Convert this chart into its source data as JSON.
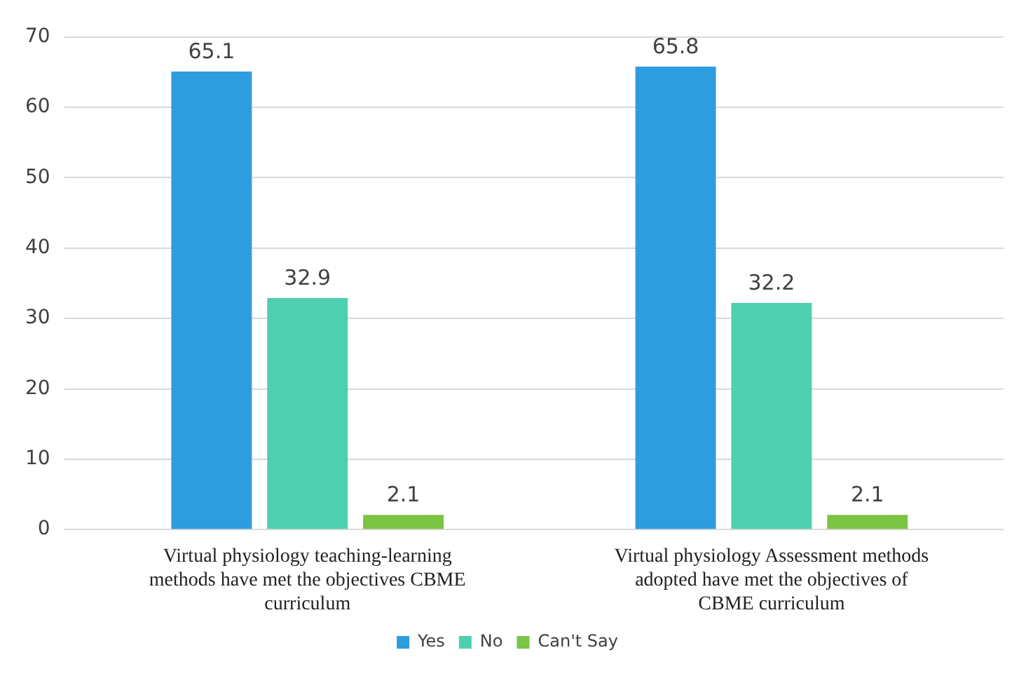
{
  "chart_data": {
    "type": "bar",
    "categories": [
      "Virtual physiology teaching-learning methods have met the objectives CBME curriculum",
      "Virtual physiology Assessment methods adopted have met the objectives of CBME curriculum"
    ],
    "series": [
      {
        "name": "Yes",
        "color": "#2e9de0",
        "values": [
          65.1,
          65.8
        ]
      },
      {
        "name": "No",
        "color": "#4dcfb0",
        "values": [
          32.9,
          32.2
        ]
      },
      {
        "name": "Can't Say",
        "color": "#7cc444",
        "values": [
          2.1,
          2.1
        ]
      }
    ],
    "ylim": [
      0,
      70
    ],
    "yticks": [
      0,
      10,
      20,
      30,
      40,
      50,
      60,
      70
    ],
    "grid": "y",
    "legend": "bottom",
    "data_labels": true
  }
}
